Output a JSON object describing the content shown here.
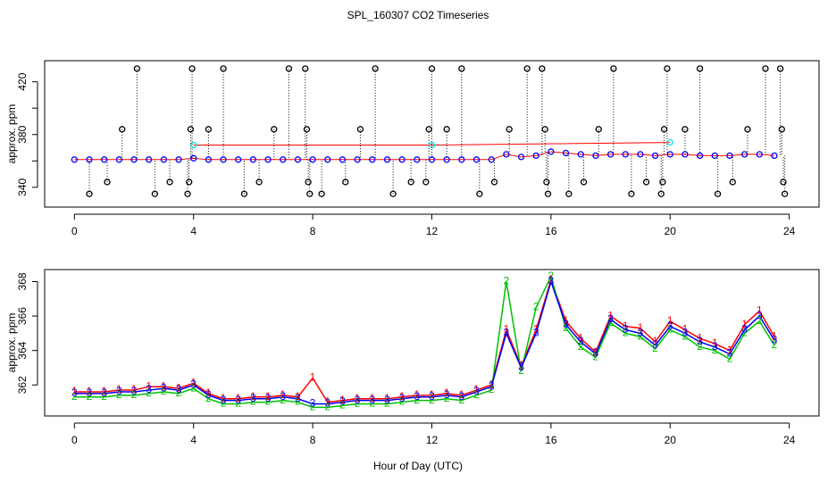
{
  "chart_data": [
    {
      "type": "scatter",
      "title": "SPL_160307  CO2 Timeseries",
      "ylabel": "approx. ppm",
      "xlim": [
        -1,
        25
      ],
      "xticks": [
        0,
        4,
        8,
        12,
        16,
        20,
        24
      ],
      "ylim": [
        325,
        436
      ],
      "yticks": [
        340,
        380,
        420
      ],
      "yminor_ticks": [
        360,
        400
      ],
      "series": [
        {
          "style": "spikes",
          "color": "#000000",
          "x": [
            0.5,
            1.1,
            1.6,
            2.1,
            2.7,
            3.2,
            3.8,
            3.85,
            3.9,
            3.95,
            4.5,
            5.0,
            5.7,
            6.2,
            6.7,
            7.2,
            7.75,
            7.8,
            7.85,
            7.9,
            8.3,
            9.1,
            9.6,
            10.1,
            10.7,
            11.3,
            11.8,
            11.9,
            12.0,
            12.5,
            13.0,
            13.6,
            14.1,
            14.6,
            15.2,
            15.7,
            15.8,
            15.85,
            15.9,
            16.6,
            17.1,
            17.6,
            18.1,
            18.7,
            19.2,
            19.7,
            19.75,
            19.8,
            19.9,
            20.5,
            21.0,
            21.6,
            22.1,
            22.6,
            23.2,
            23.7,
            23.75,
            23.8,
            23.85
          ],
          "values": [
            335,
            344,
            384,
            430,
            335,
            344,
            335,
            344,
            384,
            430,
            384,
            430,
            335,
            344,
            384,
            430,
            430,
            384,
            344,
            335,
            335,
            344,
            384,
            430,
            335,
            344,
            344,
            384,
            430,
            384,
            430,
            335,
            344,
            384,
            430,
            430,
            384,
            344,
            335,
            335,
            344,
            384,
            430,
            335,
            344,
            335,
            344,
            384,
            430,
            384,
            430,
            335,
            344,
            384,
            430,
            430,
            384,
            344,
            335
          ]
        },
        {
          "style": "points",
          "color": "#0000ff",
          "x": [
            0,
            0.5,
            1,
            1.5,
            2,
            2.5,
            3,
            3.5,
            4,
            4.5,
            5,
            5.5,
            6,
            6.5,
            7,
            7.5,
            8,
            8.5,
            9,
            9.5,
            10,
            10.5,
            11,
            11.5,
            12,
            12.5,
            13,
            13.5,
            14,
            14.5,
            15,
            15.5,
            16,
            16.5,
            17,
            17.5,
            18,
            18.5,
            19,
            19.5,
            20,
            20.5,
            21,
            21.5,
            22,
            22.5,
            23,
            23.5
          ],
          "values": [
            361,
            361,
            361,
            361,
            361,
            361,
            361,
            361,
            362,
            361,
            361,
            361,
            361,
            361,
            361,
            361,
            361,
            361,
            361,
            361,
            361,
            361,
            361,
            361,
            361,
            361,
            361,
            361,
            361,
            365,
            363,
            364,
            367,
            366,
            365,
            364,
            365,
            365,
            365,
            364,
            365,
            365,
            364,
            364,
            364,
            365,
            365,
            364
          ]
        },
        {
          "style": "points",
          "color": "#00e5e5",
          "x": [
            4,
            12,
            20
          ],
          "values": [
            372,
            372,
            374
          ]
        }
      ]
    },
    {
      "type": "line",
      "ylabel": "approx. ppm",
      "xlabel": "Hour of Day (UTC)",
      "xlim": [
        -1,
        25
      ],
      "xticks": [
        0,
        4,
        8,
        12,
        16,
        20,
        24
      ],
      "ylim": [
        360.2,
        368.7
      ],
      "yticks": [
        362,
        364,
        366,
        368
      ],
      "x": [
        0,
        0.5,
        1,
        1.5,
        2,
        2.5,
        3,
        3.5,
        4,
        4.5,
        5,
        5.5,
        6,
        6.5,
        7,
        7.5,
        8,
        8.5,
        9,
        9.5,
        10,
        10.5,
        11,
        11.5,
        12,
        12.5,
        13,
        13.5,
        14,
        14.5,
        15,
        15.5,
        16,
        16.5,
        17,
        17.5,
        18,
        18.5,
        19,
        19.5,
        20,
        20.5,
        21,
        21.5,
        22,
        22.5,
        23,
        23.5
      ],
      "series": [
        {
          "marker": "1",
          "color": "#ff0000",
          "values": [
            361.6,
            361.6,
            361.6,
            361.7,
            361.7,
            361.9,
            361.9,
            361.8,
            362.1,
            361.5,
            361.2,
            361.2,
            361.3,
            361.3,
            361.4,
            361.3,
            362.4,
            361.0,
            361.1,
            361.2,
            361.2,
            361.2,
            361.3,
            361.4,
            361.4,
            361.5,
            361.4,
            361.7,
            362.0,
            365.2,
            363.1,
            365.2,
            368.1,
            365.7,
            364.7,
            363.9,
            366.0,
            365.4,
            365.3,
            364.5,
            365.7,
            365.2,
            364.7,
            364.4,
            364.0,
            365.5,
            366.3,
            364.8
          ]
        },
        {
          "marker": "2",
          "color": "#00c000",
          "values": [
            361.3,
            361.3,
            361.3,
            361.4,
            361.4,
            361.5,
            361.6,
            361.5,
            361.8,
            361.2,
            360.9,
            360.9,
            361.0,
            361.0,
            361.1,
            361.0,
            360.7,
            360.7,
            360.8,
            360.9,
            360.9,
            360.9,
            361.0,
            361.1,
            361.1,
            361.2,
            361.1,
            361.4,
            361.7,
            368.0,
            362.8,
            366.5,
            368.3,
            365.3,
            364.2,
            363.6,
            365.6,
            365.0,
            364.8,
            364.1,
            365.2,
            364.8,
            364.2,
            364.0,
            363.5,
            365.0,
            365.7,
            364.3
          ]
        },
        {
          "marker": "3",
          "color": "#0000ff",
          "values": [
            361.5,
            361.5,
            361.5,
            361.6,
            361.6,
            361.7,
            361.8,
            361.7,
            362.0,
            361.4,
            361.1,
            361.1,
            361.2,
            361.2,
            361.3,
            361.2,
            360.9,
            360.9,
            361.0,
            361.1,
            361.1,
            361.1,
            361.2,
            361.3,
            361.3,
            361.4,
            361.3,
            361.6,
            361.9,
            365.0,
            363.0,
            365.0,
            368.0,
            365.5,
            364.5,
            363.8,
            365.8,
            365.2,
            365.0,
            364.3,
            365.4,
            365.0,
            364.5,
            364.2,
            363.8,
            365.2,
            366.0,
            364.6
          ]
        }
      ]
    }
  ]
}
